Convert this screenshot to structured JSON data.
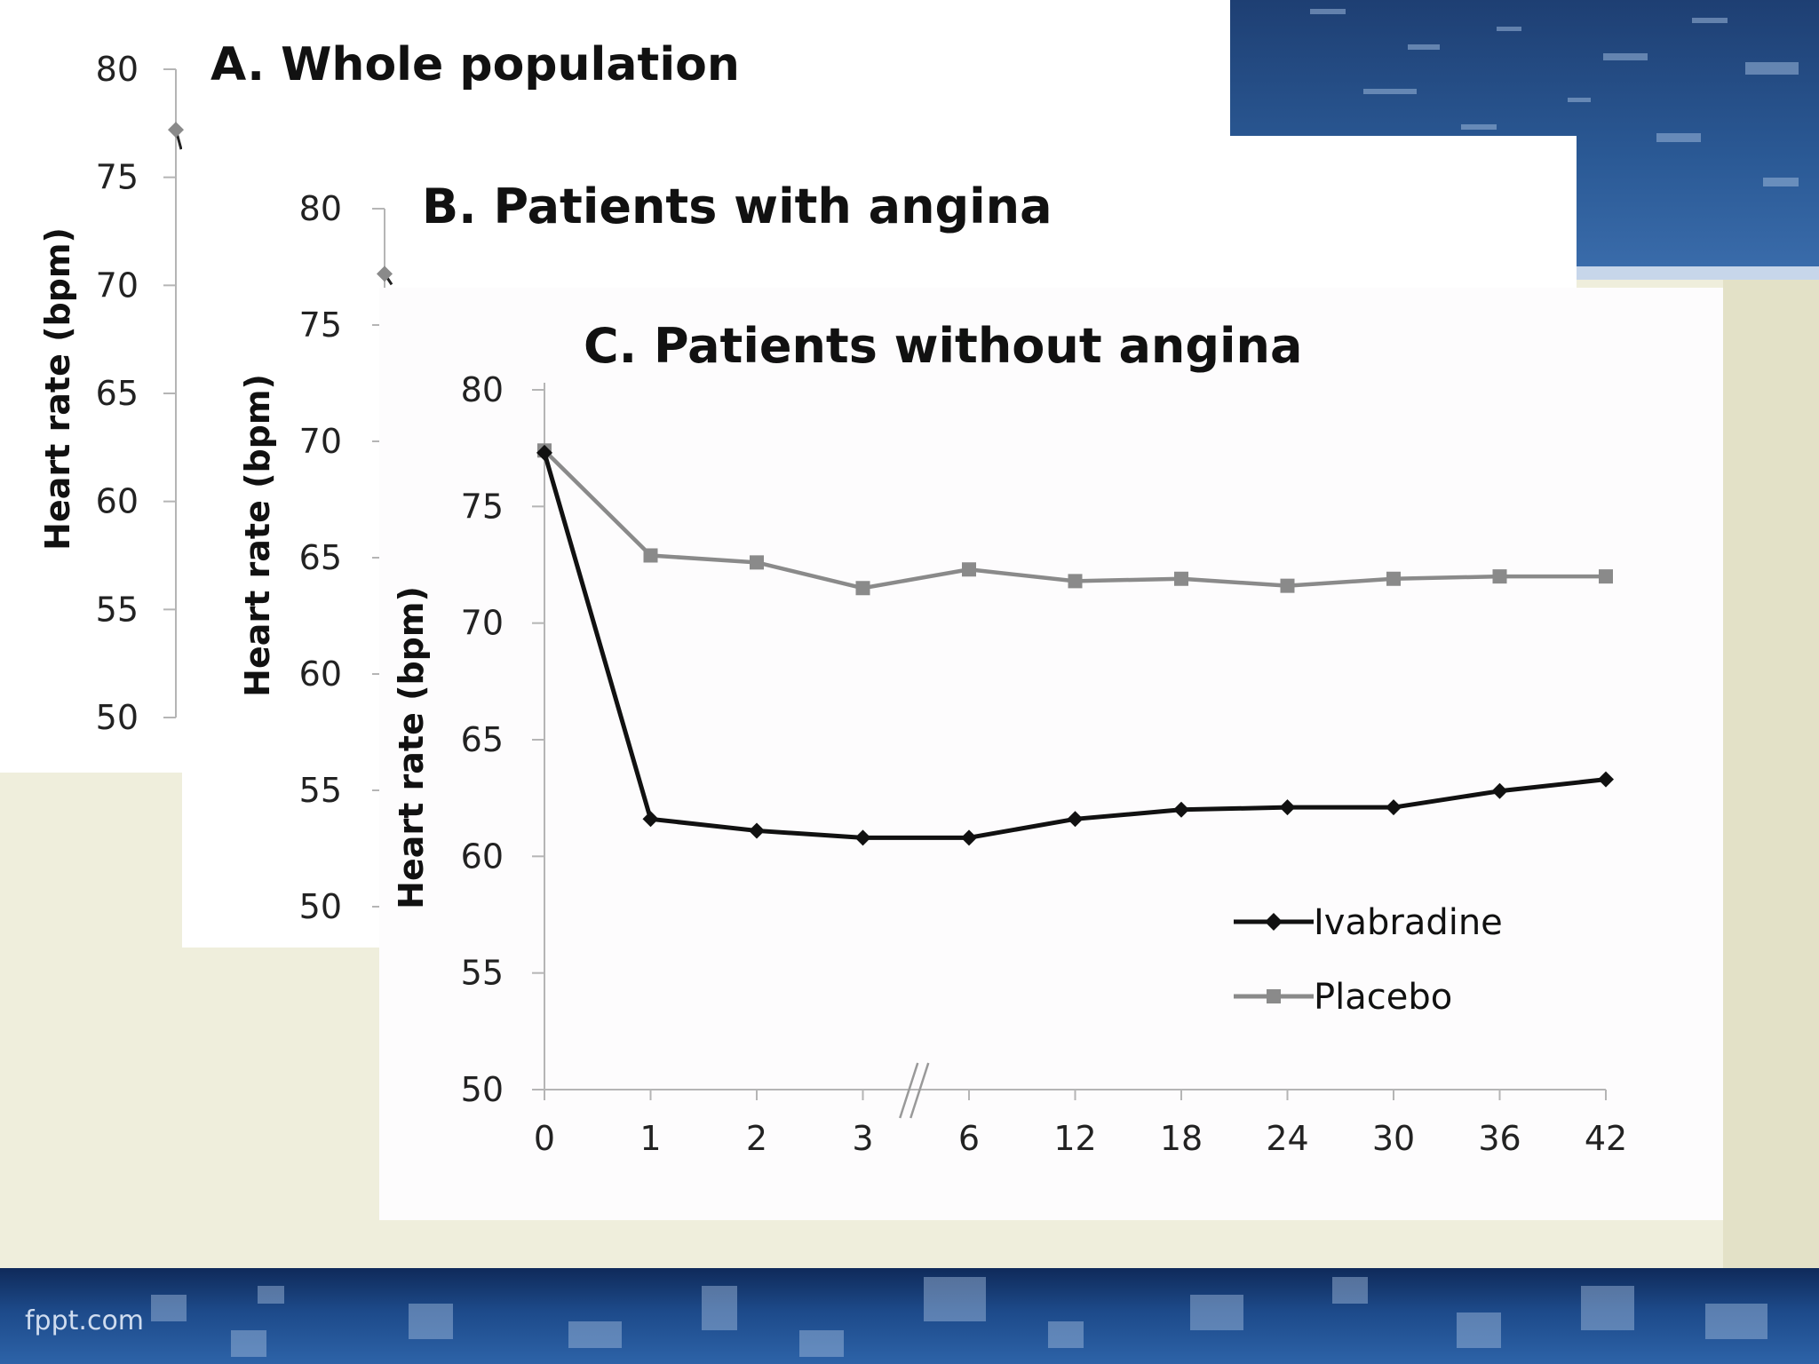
{
  "footer": {
    "brand": "fppt.com"
  },
  "chart_data": [
    {
      "type": "line",
      "title": "A. Whole population",
      "xlabel": "",
      "ylabel": "Heart rate (bpm)",
      "ylim": [
        50,
        80
      ],
      "yticks": [
        80,
        75,
        70,
        65,
        60,
        55,
        50
      ],
      "x": [
        0
      ],
      "series": [
        {
          "values": [
            77.2
          ]
        }
      ],
      "grid": false
    },
    {
      "type": "line",
      "title": "B. Patients with angina",
      "xlabel": "",
      "ylabel": "Heart rate (bpm)",
      "ylim": [
        50,
        80
      ],
      "yticks": [
        80,
        75,
        70,
        65,
        60,
        55,
        50
      ],
      "x": [
        0
      ],
      "series": [
        {
          "values": [
            77.2
          ]
        }
      ],
      "grid": false
    },
    {
      "type": "line",
      "title": "C. Patients without angina",
      "xlabel": "",
      "ylabel": "Heart rate (bpm)",
      "ylim": [
        50,
        80
      ],
      "yticks": [
        80,
        75,
        70,
        65,
        60,
        55,
        50
      ],
      "categories": [
        "0",
        "1",
        "2",
        "3",
        "6",
        "12",
        "18",
        "24",
        "30",
        "36",
        "42"
      ],
      "axis_break": "between 3 and 6",
      "series": [
        {
          "name": "Ivabradine",
          "color": "#111111",
          "marker": "diamond",
          "values": [
            77.3,
            61.6,
            61.1,
            60.8,
            60.8,
            61.6,
            62.0,
            62.1,
            62.1,
            62.8,
            63.3
          ]
        },
        {
          "name": "Placebo",
          "color": "#8a8a8a",
          "marker": "square",
          "values": [
            77.4,
            72.9,
            72.6,
            71.5,
            72.3,
            71.8,
            71.9,
            71.6,
            71.9,
            72.0,
            72.0
          ]
        }
      ],
      "legend": "bottom-right",
      "grid": false
    }
  ]
}
